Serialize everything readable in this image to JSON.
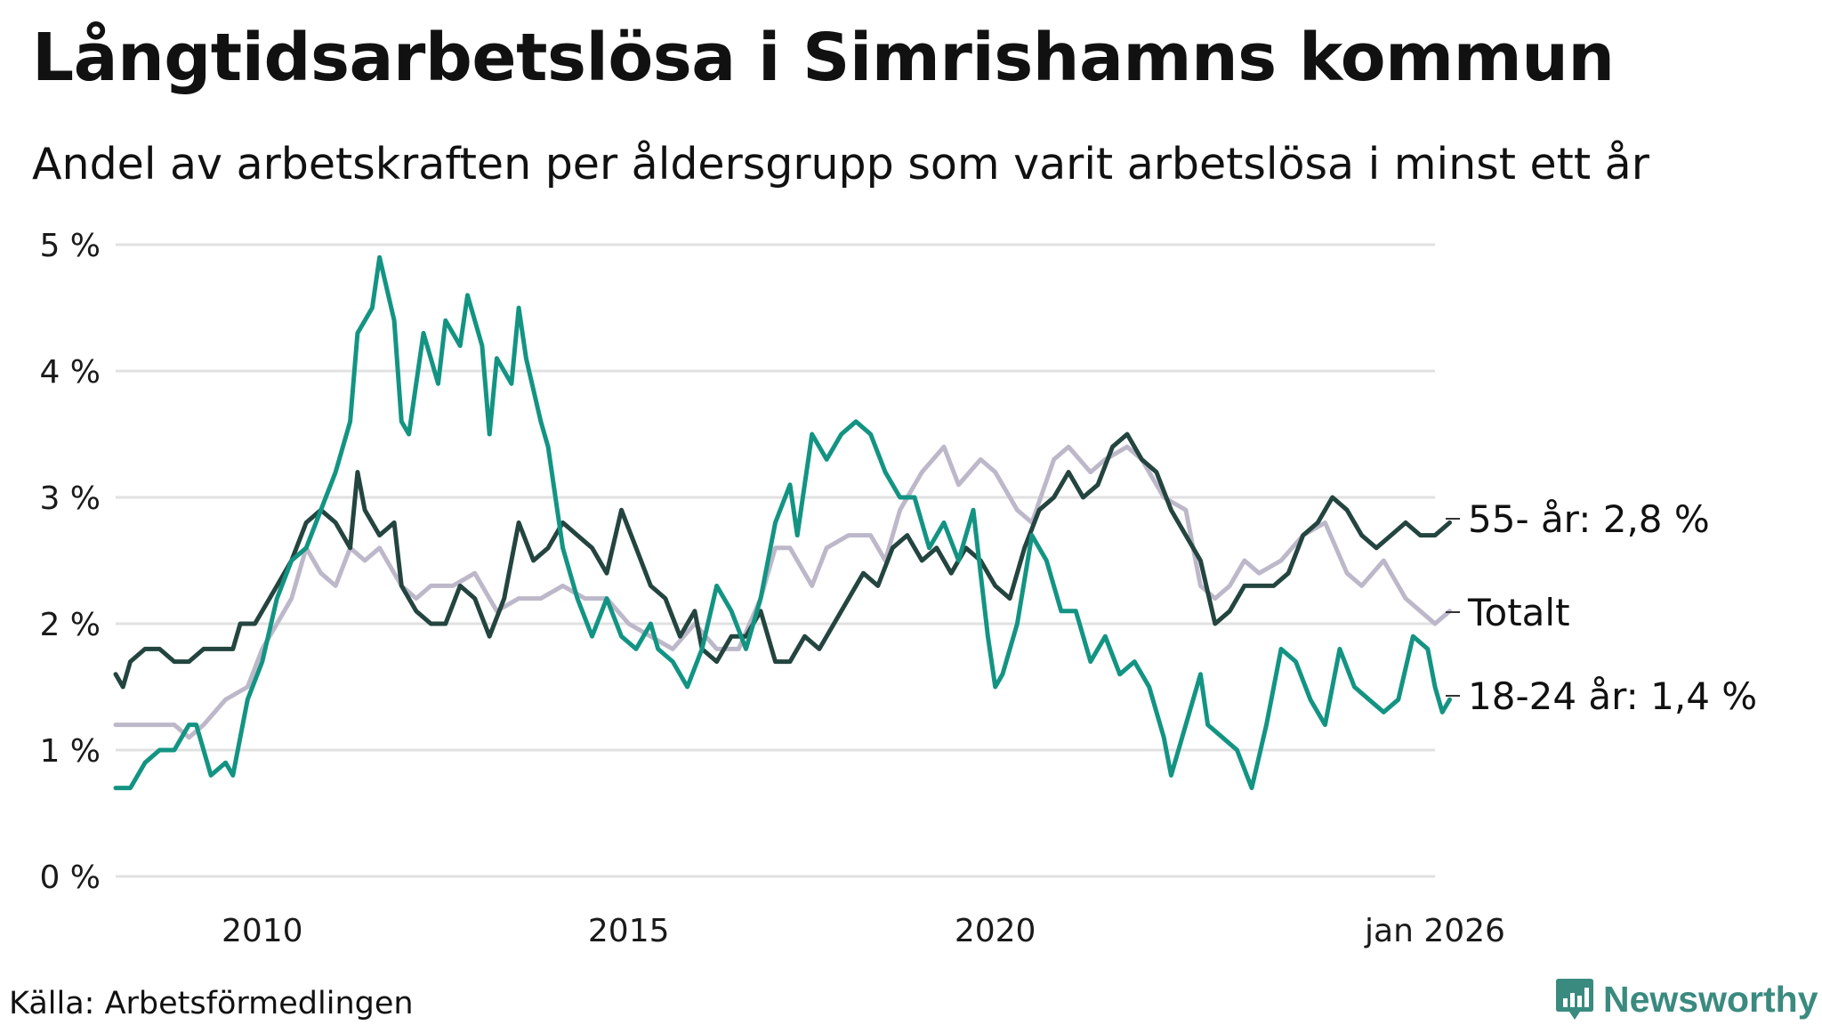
{
  "title": "Långtidsarbetslösa i Simrishamns kommun",
  "subtitle": "Andel av arbetskraften per åldersgrupp som varit arbetslösa i minst ett år",
  "source": "Källa: Arbetsförmedlingen",
  "brand": {
    "name": "Newsworthy",
    "icon": "newsworthy-logo-icon"
  },
  "colors": {
    "young": "#139483",
    "old": "#24453f",
    "total": "#bdb8c9",
    "grid": "#e1e1e1",
    "brand": "#3a8a7f"
  },
  "chart_data": {
    "type": "line",
    "x_unit": "decimal year",
    "xlim": [
      2008.0,
      2026.0
    ],
    "ylim": [
      0,
      5
    ],
    "yticks": [
      0,
      1,
      2,
      3,
      4,
      5
    ],
    "ytick_labels": [
      "0 %",
      "1 %",
      "2 %",
      "3 %",
      "4 %",
      "5 %"
    ],
    "xticks": [
      2010,
      2015,
      2020,
      2026
    ],
    "xtick_labels": [
      "2010",
      "2015",
      "2020",
      "jan 2026"
    ],
    "grid": "horizontal",
    "series": [
      {
        "name": "Totalt",
        "end_label": "Totalt",
        "color": "#bdb8c9",
        "points": [
          [
            2008.0,
            1.2
          ],
          [
            2008.5,
            1.2
          ],
          [
            2008.8,
            1.2
          ],
          [
            2009.0,
            1.1
          ],
          [
            2009.2,
            1.2
          ],
          [
            2009.5,
            1.4
          ],
          [
            2009.8,
            1.5
          ],
          [
            2010.0,
            1.8
          ],
          [
            2010.2,
            2.0
          ],
          [
            2010.4,
            2.2
          ],
          [
            2010.6,
            2.6
          ],
          [
            2010.8,
            2.4
          ],
          [
            2011.0,
            2.3
          ],
          [
            2011.2,
            2.6
          ],
          [
            2011.4,
            2.5
          ],
          [
            2011.6,
            2.6
          ],
          [
            2011.9,
            2.3
          ],
          [
            2012.1,
            2.2
          ],
          [
            2012.3,
            2.3
          ],
          [
            2012.6,
            2.3
          ],
          [
            2012.9,
            2.4
          ],
          [
            2013.2,
            2.1
          ],
          [
            2013.5,
            2.2
          ],
          [
            2013.8,
            2.2
          ],
          [
            2014.1,
            2.3
          ],
          [
            2014.4,
            2.2
          ],
          [
            2014.7,
            2.2
          ],
          [
            2015.0,
            2.0
          ],
          [
            2015.3,
            1.9
          ],
          [
            2015.6,
            1.8
          ],
          [
            2015.9,
            2.0
          ],
          [
            2016.2,
            1.8
          ],
          [
            2016.5,
            1.8
          ],
          [
            2016.8,
            2.2
          ],
          [
            2017.0,
            2.6
          ],
          [
            2017.2,
            2.6
          ],
          [
            2017.5,
            2.3
          ],
          [
            2017.7,
            2.6
          ],
          [
            2018.0,
            2.7
          ],
          [
            2018.3,
            2.7
          ],
          [
            2018.5,
            2.5
          ],
          [
            2018.7,
            2.9
          ],
          [
            2019.0,
            3.2
          ],
          [
            2019.3,
            3.4
          ],
          [
            2019.5,
            3.1
          ],
          [
            2019.8,
            3.3
          ],
          [
            2020.0,
            3.2
          ],
          [
            2020.3,
            2.9
          ],
          [
            2020.5,
            2.8
          ],
          [
            2020.8,
            3.3
          ],
          [
            2021.0,
            3.4
          ],
          [
            2021.3,
            3.2
          ],
          [
            2021.5,
            3.3
          ],
          [
            2021.8,
            3.4
          ],
          [
            2022.0,
            3.3
          ],
          [
            2022.3,
            3.0
          ],
          [
            2022.6,
            2.9
          ],
          [
            2022.8,
            2.3
          ],
          [
            2023.0,
            2.2
          ],
          [
            2023.2,
            2.3
          ],
          [
            2023.4,
            2.5
          ],
          [
            2023.6,
            2.4
          ],
          [
            2023.9,
            2.5
          ],
          [
            2024.2,
            2.7
          ],
          [
            2024.5,
            2.8
          ],
          [
            2024.8,
            2.4
          ],
          [
            2025.0,
            2.3
          ],
          [
            2025.3,
            2.5
          ],
          [
            2025.6,
            2.2
          ],
          [
            2025.8,
            2.1
          ],
          [
            2026.0,
            2.0
          ],
          [
            2026.2,
            2.1
          ]
        ]
      },
      {
        "name": "55- år",
        "end_label": "55- år: 2,8 %",
        "color": "#24453f",
        "points": [
          [
            2008.0,
            1.6
          ],
          [
            2008.1,
            1.5
          ],
          [
            2008.2,
            1.7
          ],
          [
            2008.4,
            1.8
          ],
          [
            2008.6,
            1.8
          ],
          [
            2008.8,
            1.7
          ],
          [
            2009.0,
            1.7
          ],
          [
            2009.2,
            1.8
          ],
          [
            2009.4,
            1.8
          ],
          [
            2009.6,
            1.8
          ],
          [
            2009.7,
            2.0
          ],
          [
            2009.9,
            2.0
          ],
          [
            2010.0,
            2.1
          ],
          [
            2010.2,
            2.3
          ],
          [
            2010.4,
            2.5
          ],
          [
            2010.6,
            2.8
          ],
          [
            2010.8,
            2.9
          ],
          [
            2011.0,
            2.8
          ],
          [
            2011.2,
            2.6
          ],
          [
            2011.3,
            3.2
          ],
          [
            2011.4,
            2.9
          ],
          [
            2011.6,
            2.7
          ],
          [
            2011.8,
            2.8
          ],
          [
            2011.9,
            2.3
          ],
          [
            2012.1,
            2.1
          ],
          [
            2012.3,
            2.0
          ],
          [
            2012.5,
            2.0
          ],
          [
            2012.7,
            2.3
          ],
          [
            2012.9,
            2.2
          ],
          [
            2013.1,
            1.9
          ],
          [
            2013.3,
            2.2
          ],
          [
            2013.5,
            2.8
          ],
          [
            2013.7,
            2.5
          ],
          [
            2013.9,
            2.6
          ],
          [
            2014.1,
            2.8
          ],
          [
            2014.3,
            2.7
          ],
          [
            2014.5,
            2.6
          ],
          [
            2014.7,
            2.4
          ],
          [
            2014.9,
            2.9
          ],
          [
            2015.1,
            2.6
          ],
          [
            2015.3,
            2.3
          ],
          [
            2015.5,
            2.2
          ],
          [
            2015.7,
            1.9
          ],
          [
            2015.9,
            2.1
          ],
          [
            2016.0,
            1.8
          ],
          [
            2016.2,
            1.7
          ],
          [
            2016.4,
            1.9
          ],
          [
            2016.6,
            1.9
          ],
          [
            2016.8,
            2.1
          ],
          [
            2017.0,
            1.7
          ],
          [
            2017.2,
            1.7
          ],
          [
            2017.4,
            1.9
          ],
          [
            2017.6,
            1.8
          ],
          [
            2017.8,
            2.0
          ],
          [
            2018.0,
            2.2
          ],
          [
            2018.2,
            2.4
          ],
          [
            2018.4,
            2.3
          ],
          [
            2018.6,
            2.6
          ],
          [
            2018.8,
            2.7
          ],
          [
            2019.0,
            2.5
          ],
          [
            2019.2,
            2.6
          ],
          [
            2019.4,
            2.4
          ],
          [
            2019.6,
            2.6
          ],
          [
            2019.8,
            2.5
          ],
          [
            2020.0,
            2.3
          ],
          [
            2020.2,
            2.2
          ],
          [
            2020.4,
            2.6
          ],
          [
            2020.6,
            2.9
          ],
          [
            2020.8,
            3.0
          ],
          [
            2021.0,
            3.2
          ],
          [
            2021.2,
            3.0
          ],
          [
            2021.4,
            3.1
          ],
          [
            2021.6,
            3.4
          ],
          [
            2021.8,
            3.5
          ],
          [
            2022.0,
            3.3
          ],
          [
            2022.2,
            3.2
          ],
          [
            2022.4,
            2.9
          ],
          [
            2022.6,
            2.7
          ],
          [
            2022.8,
            2.5
          ],
          [
            2023.0,
            2.0
          ],
          [
            2023.2,
            2.1
          ],
          [
            2023.4,
            2.3
          ],
          [
            2023.6,
            2.3
          ],
          [
            2023.8,
            2.3
          ],
          [
            2024.0,
            2.4
          ],
          [
            2024.2,
            2.7
          ],
          [
            2024.4,
            2.8
          ],
          [
            2024.6,
            3.0
          ],
          [
            2024.8,
            2.9
          ],
          [
            2025.0,
            2.7
          ],
          [
            2025.2,
            2.6
          ],
          [
            2025.4,
            2.7
          ],
          [
            2025.6,
            2.8
          ],
          [
            2025.8,
            2.7
          ],
          [
            2026.0,
            2.7
          ],
          [
            2026.2,
            2.8
          ]
        ]
      },
      {
        "name": "18-24 år",
        "end_label": "18-24 år: 1,4 %",
        "color": "#139483",
        "points": [
          [
            2008.0,
            0.7
          ],
          [
            2008.2,
            0.7
          ],
          [
            2008.4,
            0.9
          ],
          [
            2008.6,
            1.0
          ],
          [
            2008.8,
            1.0
          ],
          [
            2009.0,
            1.2
          ],
          [
            2009.1,
            1.2
          ],
          [
            2009.3,
            0.8
          ],
          [
            2009.5,
            0.9
          ],
          [
            2009.6,
            0.8
          ],
          [
            2009.8,
            1.4
          ],
          [
            2010.0,
            1.7
          ],
          [
            2010.2,
            2.2
          ],
          [
            2010.4,
            2.5
          ],
          [
            2010.6,
            2.6
          ],
          [
            2010.8,
            2.9
          ],
          [
            2011.0,
            3.2
          ],
          [
            2011.2,
            3.6
          ],
          [
            2011.3,
            4.3
          ],
          [
            2011.5,
            4.5
          ],
          [
            2011.6,
            4.9
          ],
          [
            2011.8,
            4.4
          ],
          [
            2011.9,
            3.6
          ],
          [
            2012.0,
            3.5
          ],
          [
            2012.2,
            4.3
          ],
          [
            2012.4,
            3.9
          ],
          [
            2012.5,
            4.4
          ],
          [
            2012.7,
            4.2
          ],
          [
            2012.8,
            4.6
          ],
          [
            2013.0,
            4.2
          ],
          [
            2013.1,
            3.5
          ],
          [
            2013.2,
            4.1
          ],
          [
            2013.4,
            3.9
          ],
          [
            2013.5,
            4.5
          ],
          [
            2013.6,
            4.1
          ],
          [
            2013.8,
            3.6
          ],
          [
            2013.9,
            3.4
          ],
          [
            2014.1,
            2.6
          ],
          [
            2014.3,
            2.2
          ],
          [
            2014.5,
            1.9
          ],
          [
            2014.7,
            2.2
          ],
          [
            2014.9,
            1.9
          ],
          [
            2015.1,
            1.8
          ],
          [
            2015.3,
            2.0
          ],
          [
            2015.4,
            1.8
          ],
          [
            2015.6,
            1.7
          ],
          [
            2015.8,
            1.5
          ],
          [
            2016.0,
            1.8
          ],
          [
            2016.2,
            2.3
          ],
          [
            2016.4,
            2.1
          ],
          [
            2016.6,
            1.8
          ],
          [
            2016.8,
            2.2
          ],
          [
            2017.0,
            2.8
          ],
          [
            2017.2,
            3.1
          ],
          [
            2017.3,
            2.7
          ],
          [
            2017.5,
            3.5
          ],
          [
            2017.7,
            3.3
          ],
          [
            2017.9,
            3.5
          ],
          [
            2018.1,
            3.6
          ],
          [
            2018.3,
            3.5
          ],
          [
            2018.5,
            3.2
          ],
          [
            2018.7,
            3.0
          ],
          [
            2018.9,
            3.0
          ],
          [
            2019.1,
            2.6
          ],
          [
            2019.3,
            2.8
          ],
          [
            2019.5,
            2.5
          ],
          [
            2019.7,
            2.9
          ],
          [
            2019.9,
            1.9
          ],
          [
            2020.0,
            1.5
          ],
          [
            2020.1,
            1.6
          ],
          [
            2020.3,
            2.0
          ],
          [
            2020.5,
            2.7
          ],
          [
            2020.7,
            2.5
          ],
          [
            2020.9,
            2.1
          ],
          [
            2021.1,
            2.1
          ],
          [
            2021.3,
            1.7
          ],
          [
            2021.5,
            1.9
          ],
          [
            2021.7,
            1.6
          ],
          [
            2021.9,
            1.7
          ],
          [
            2022.1,
            1.5
          ],
          [
            2022.3,
            1.1
          ],
          [
            2022.4,
            0.8
          ],
          [
            2022.6,
            1.2
          ],
          [
            2022.8,
            1.6
          ],
          [
            2022.9,
            1.2
          ],
          [
            2023.1,
            1.1
          ],
          [
            2023.3,
            1.0
          ],
          [
            2023.5,
            0.7
          ],
          [
            2023.7,
            1.2
          ],
          [
            2023.9,
            1.8
          ],
          [
            2024.1,
            1.7
          ],
          [
            2024.3,
            1.4
          ],
          [
            2024.5,
            1.2
          ],
          [
            2024.7,
            1.8
          ],
          [
            2024.9,
            1.5
          ],
          [
            2025.1,
            1.4
          ],
          [
            2025.3,
            1.3
          ],
          [
            2025.5,
            1.4
          ],
          [
            2025.7,
            1.9
          ],
          [
            2025.9,
            1.8
          ],
          [
            2026.0,
            1.5
          ],
          [
            2026.1,
            1.3
          ],
          [
            2026.2,
            1.4
          ]
        ]
      }
    ]
  }
}
